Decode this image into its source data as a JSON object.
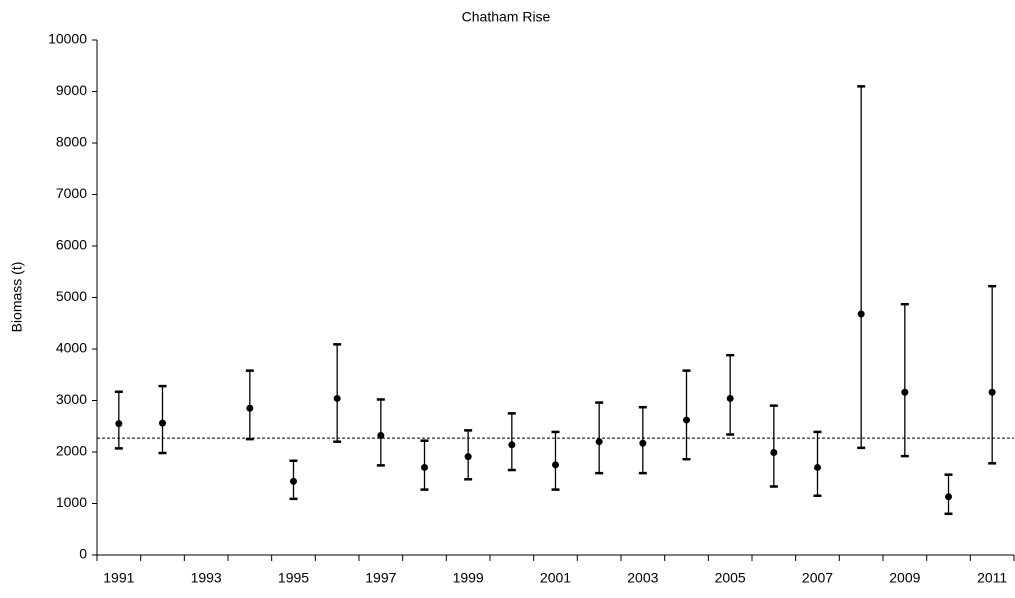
{
  "chart_data": {
    "type": "errorbar",
    "title": "Chatham Rise",
    "y_label": "Biomass (t)",
    "categories": [
      "1991",
      null,
      "1993",
      null,
      "1995",
      null,
      "1997",
      null,
      "1999",
      null,
      "2001",
      null,
      "2003",
      null,
      "2005",
      null,
      "2007",
      null,
      "2009",
      null,
      "2011"
    ],
    "values": [
      2550,
      2560,
      null,
      2850,
      1430,
      3040,
      2320,
      1700,
      1910,
      2140,
      1750,
      2200,
      2170,
      2620,
      3040,
      1990,
      1700,
      4680,
      3160,
      1130,
      3160
    ],
    "lower": [
      2070,
      1980,
      null,
      2250,
      1090,
      2200,
      1740,
      1270,
      1470,
      1650,
      1270,
      1590,
      1590,
      1860,
      2340,
      1330,
      1150,
      2080,
      1920,
      800,
      1780
    ],
    "upper": [
      3170,
      3280,
      null,
      3580,
      1830,
      4090,
      3020,
      2220,
      2420,
      2750,
      2390,
      2960,
      2870,
      3580,
      3880,
      2900,
      2390,
      9100,
      4870,
      1560,
      5220
    ],
    "reference_line": 2270,
    "color": "#000000",
    "ylim": [
      0,
      10000
    ],
    "yticks": [
      0,
      1000,
      2000,
      3000,
      4000,
      5000,
      6000,
      7000,
      8000,
      9000,
      10000
    ]
  }
}
